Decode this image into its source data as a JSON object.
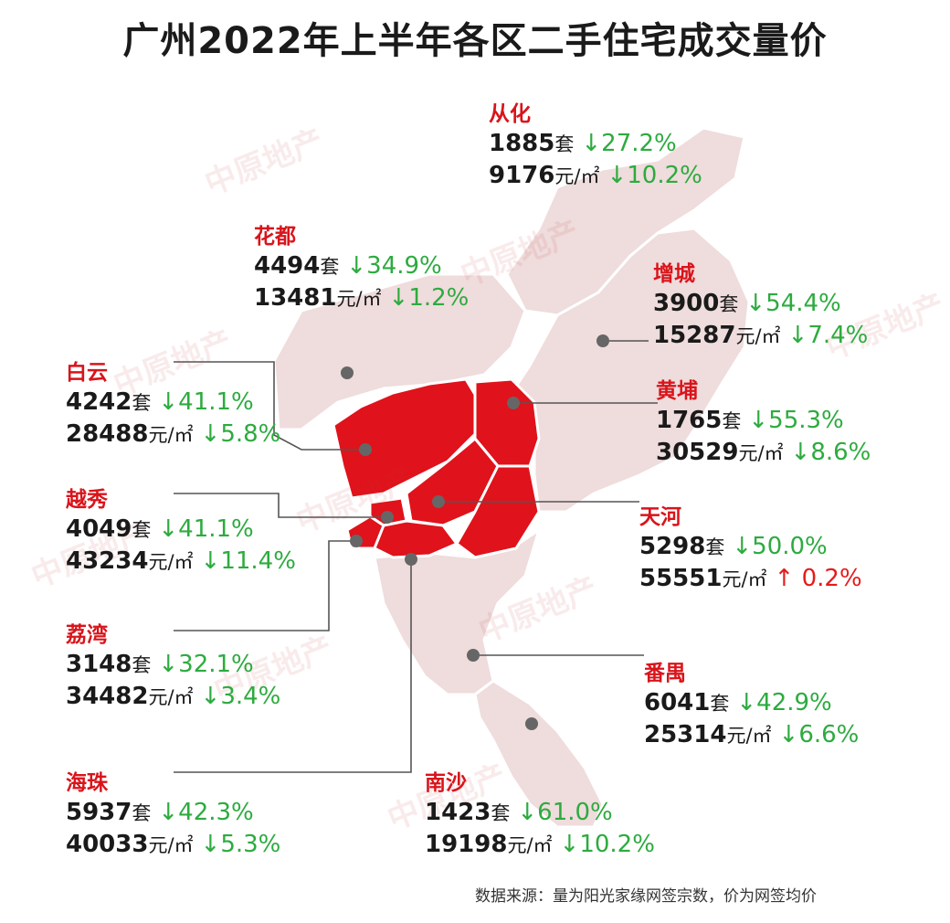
{
  "title": "广州2022年上半年各区二手住宅成交量价",
  "source": "数据来源：量为阳光家缘网签宗数，价为网签均价",
  "watermark": "中原地产",
  "colors": {
    "highlight_region": "#e0121b",
    "outer_region": "#efdcdc",
    "district_name": "#d9141b",
    "decrease": "#2dab3f",
    "increase": "#e51b1b",
    "leader_line": "#555555"
  },
  "districts": [
    {
      "name": "从化",
      "volume": "1885",
      "vol_unit": "套",
      "vol_change": "↓27.2%",
      "price": "9176",
      "price_unit": "元/㎡",
      "price_change": "↓10.2%",
      "price_dir": "down"
    },
    {
      "name": "花都",
      "volume": "4494",
      "vol_unit": "套",
      "vol_change": "↓34.9%",
      "price": "13481",
      "price_unit": "元/㎡",
      "price_change": "↓1.2%",
      "price_dir": "down"
    },
    {
      "name": "增城",
      "volume": "3900",
      "vol_unit": "套",
      "vol_change": "↓54.4%",
      "price": "15287",
      "price_unit": "元/㎡",
      "price_change": "↓7.4%",
      "price_dir": "down"
    },
    {
      "name": "白云",
      "volume": "4242",
      "vol_unit": "套",
      "vol_change": "↓41.1%",
      "price": "28488",
      "price_unit": "元/㎡",
      "price_change": "↓5.8%",
      "price_dir": "down"
    },
    {
      "name": "黄埔",
      "volume": "1765",
      "vol_unit": "套",
      "vol_change": "↓55.3%",
      "price": "30529",
      "price_unit": "元/㎡",
      "price_change": "↓8.6%",
      "price_dir": "down"
    },
    {
      "name": "越秀",
      "volume": "4049",
      "vol_unit": "套",
      "vol_change": "↓41.1%",
      "price": "43234",
      "price_unit": "元/㎡",
      "price_change": "↓11.4%",
      "price_dir": "down"
    },
    {
      "name": "天河",
      "volume": "5298",
      "vol_unit": "套",
      "vol_change": "↓50.0%",
      "price": "55551",
      "price_unit": "元/㎡",
      "price_change": "↑ 0.2%",
      "price_dir": "up"
    },
    {
      "name": "荔湾",
      "volume": "3148",
      "vol_unit": "套",
      "vol_change": "↓32.1%",
      "price": "34482",
      "price_unit": "元/㎡",
      "price_change": "↓3.4%",
      "price_dir": "down"
    },
    {
      "name": "番禺",
      "volume": "6041",
      "vol_unit": "套",
      "vol_change": "↓42.9%",
      "price": "25314",
      "price_unit": "元/㎡",
      "price_change": "↓6.6%",
      "price_dir": "down"
    },
    {
      "name": "海珠",
      "volume": "5937",
      "vol_unit": "套",
      "vol_change": "↓42.3%",
      "price": "40033",
      "price_unit": "元/㎡",
      "price_change": "↓5.3%",
      "price_dir": "down"
    },
    {
      "name": "南沙",
      "volume": "1423",
      "vol_unit": "套",
      "vol_change": "↓61.0%",
      "price": "19198",
      "price_unit": "元/㎡",
      "price_change": "↓10.2%",
      "price_dir": "down"
    }
  ]
}
